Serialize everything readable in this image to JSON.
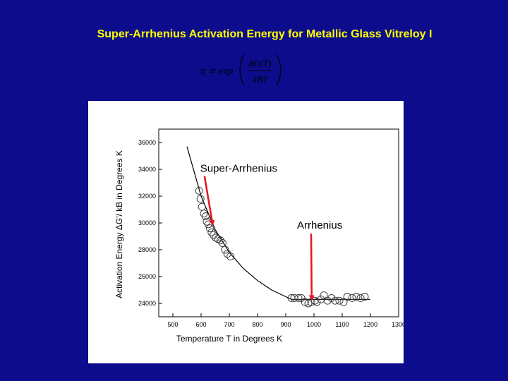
{
  "slide": {
    "title": "Super-Arrhenius Activation Energy for Metallic Glass Vitreloy I",
    "formula": {
      "lhs": "η ∝ exp",
      "numerator": "ΔG(T)",
      "denominator": "kBT"
    },
    "colors": {
      "background": "#0c0c8c",
      "title": "#ffff00",
      "arrow": "#e8141e"
    }
  },
  "chart_data": {
    "type": "scatter",
    "title": "",
    "xlabel": "Temperature T in Degrees K",
    "ylabel": "Activation Energy ΔG'/ kB in Degrees K",
    "xlim": [
      450,
      1300
    ],
    "ylim": [
      23000,
      37000
    ],
    "x_ticks": [
      500,
      600,
      700,
      800,
      900,
      1000,
      1100,
      1200,
      1300
    ],
    "y_ticks": [
      24000,
      26000,
      28000,
      30000,
      32000,
      34000,
      36000
    ],
    "grid": false,
    "series": [
      {
        "type": "scatter",
        "marker": "open-circle",
        "points": [
          [
            593,
            32400
          ],
          [
            598,
            31800
          ],
          [
            603,
            31200
          ],
          [
            610,
            30700
          ],
          [
            616,
            30500
          ],
          [
            620,
            30100
          ],
          [
            626,
            29900
          ],
          [
            631,
            29600
          ],
          [
            637,
            29300
          ],
          [
            644,
            29100
          ],
          [
            652,
            28900
          ],
          [
            660,
            28800
          ],
          [
            669,
            28700
          ],
          [
            676,
            28500
          ],
          [
            685,
            28000
          ],
          [
            693,
            27700
          ],
          [
            704,
            27500
          ],
          [
            920,
            24400
          ],
          [
            930,
            24400
          ],
          [
            945,
            24400
          ],
          [
            955,
            24400
          ],
          [
            968,
            24100
          ],
          [
            980,
            24000
          ],
          [
            990,
            24100
          ],
          [
            1003,
            24200
          ],
          [
            1010,
            24100
          ],
          [
            1025,
            24300
          ],
          [
            1035,
            24600
          ],
          [
            1048,
            24200
          ],
          [
            1062,
            24400
          ],
          [
            1075,
            24200
          ],
          [
            1090,
            24200
          ],
          [
            1105,
            24100
          ],
          [
            1118,
            24500
          ],
          [
            1135,
            24400
          ],
          [
            1150,
            24500
          ],
          [
            1165,
            24400
          ],
          [
            1180,
            24500
          ]
        ]
      },
      {
        "type": "line",
        "points": [
          [
            550,
            35700
          ],
          [
            600,
            32000
          ],
          [
            650,
            29500
          ],
          [
            700,
            27800
          ],
          [
            750,
            26600
          ],
          [
            800,
            25700
          ],
          [
            850,
            25000
          ],
          [
            900,
            24500
          ],
          [
            920,
            24300
          ],
          [
            950,
            24300
          ],
          [
            1000,
            24300
          ],
          [
            1100,
            24300
          ],
          [
            1200,
            24300
          ]
        ]
      }
    ],
    "annotations": [
      {
        "text": "Super-Arrhenius",
        "arrow_from": [
          612,
          33500
        ],
        "arrow_to": [
          641,
          29900
        ]
      },
      {
        "text": "Arrhenius",
        "arrow_from": [
          990,
          29200
        ],
        "arrow_to": [
          992,
          24300
        ]
      }
    ]
  }
}
